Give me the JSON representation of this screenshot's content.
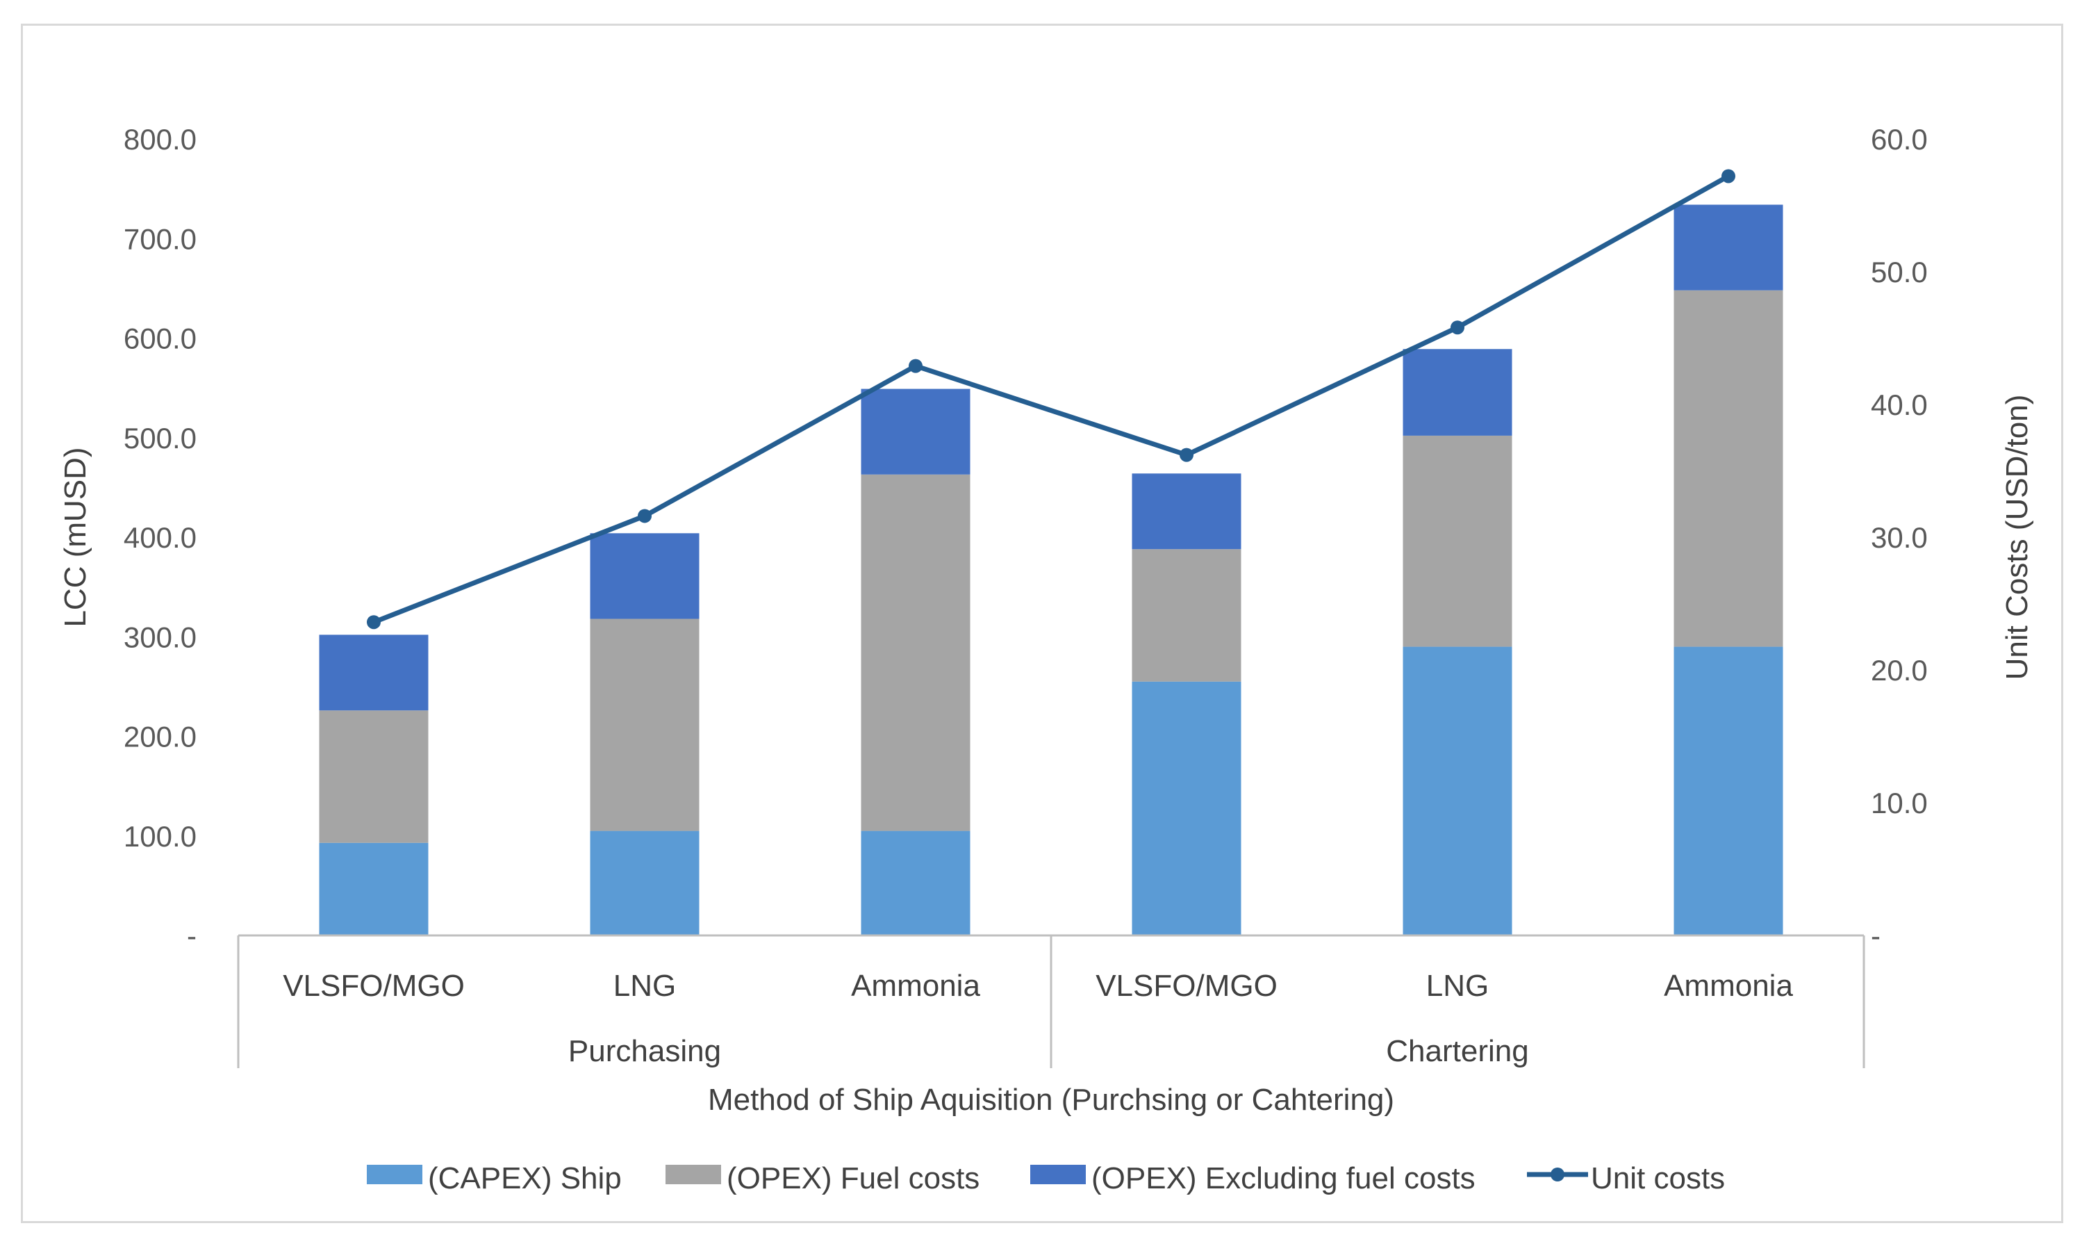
{
  "chart_data": {
    "type": "bar",
    "stacked": true,
    "categories": [
      "VLSFO/MGO",
      "LNG",
      "Ammonia",
      "VLSFO/MGO",
      "LNG",
      "Ammonia"
    ],
    "groups": [
      {
        "label": "Purchasing",
        "count": 3
      },
      {
        "label": "Chartering",
        "count": 3
      }
    ],
    "series": [
      {
        "name": "(CAPEX) Ship",
        "color": "#5b9bd5",
        "values": [
          93,
          105,
          105,
          255,
          290,
          290
        ]
      },
      {
        "name": "(OPEX) Fuel costs",
        "color": "#a5a5a5",
        "values": [
          133,
          213,
          358,
          133,
          212,
          358
        ]
      },
      {
        "name": "(OPEX) Excluding fuel costs",
        "color": "#4472c4",
        "values": [
          76,
          86,
          86,
          76,
          87,
          86
        ]
      }
    ],
    "line_series": {
      "name": "Unit costs",
      "color": "#255e91",
      "axis": "right",
      "values": [
        23.6,
        31.6,
        42.9,
        36.2,
        45.8,
        57.2
      ]
    },
    "xlabel": "Method of Ship Aquisition (Purchsing or Cahtering)",
    "ylabel": "LCC (mUSD)",
    "y2label": "Unit Costs (USD/ton)",
    "ylim": [
      0,
      800
    ],
    "y2lim": [
      0,
      60
    ],
    "yticks": [
      "-",
      "100.0",
      "200.0",
      "300.0",
      "400.0",
      "500.0",
      "600.0",
      "700.0",
      "800.0"
    ],
    "y2ticks": [
      "-",
      "10.0",
      "20.0",
      "30.0",
      "40.0",
      "50.0",
      "60.0"
    ],
    "legend_position": "bottom",
    "gridlines": false
  }
}
